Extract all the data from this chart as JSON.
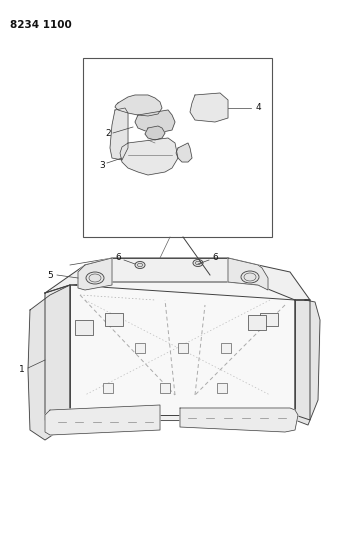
{
  "part_number": "8234 1100",
  "bg": "#ffffff",
  "lc": "#404040",
  "lc2": "#606060",
  "lc3": "#888888",
  "fig_w": 3.4,
  "fig_h": 5.33,
  "dpi": 100
}
